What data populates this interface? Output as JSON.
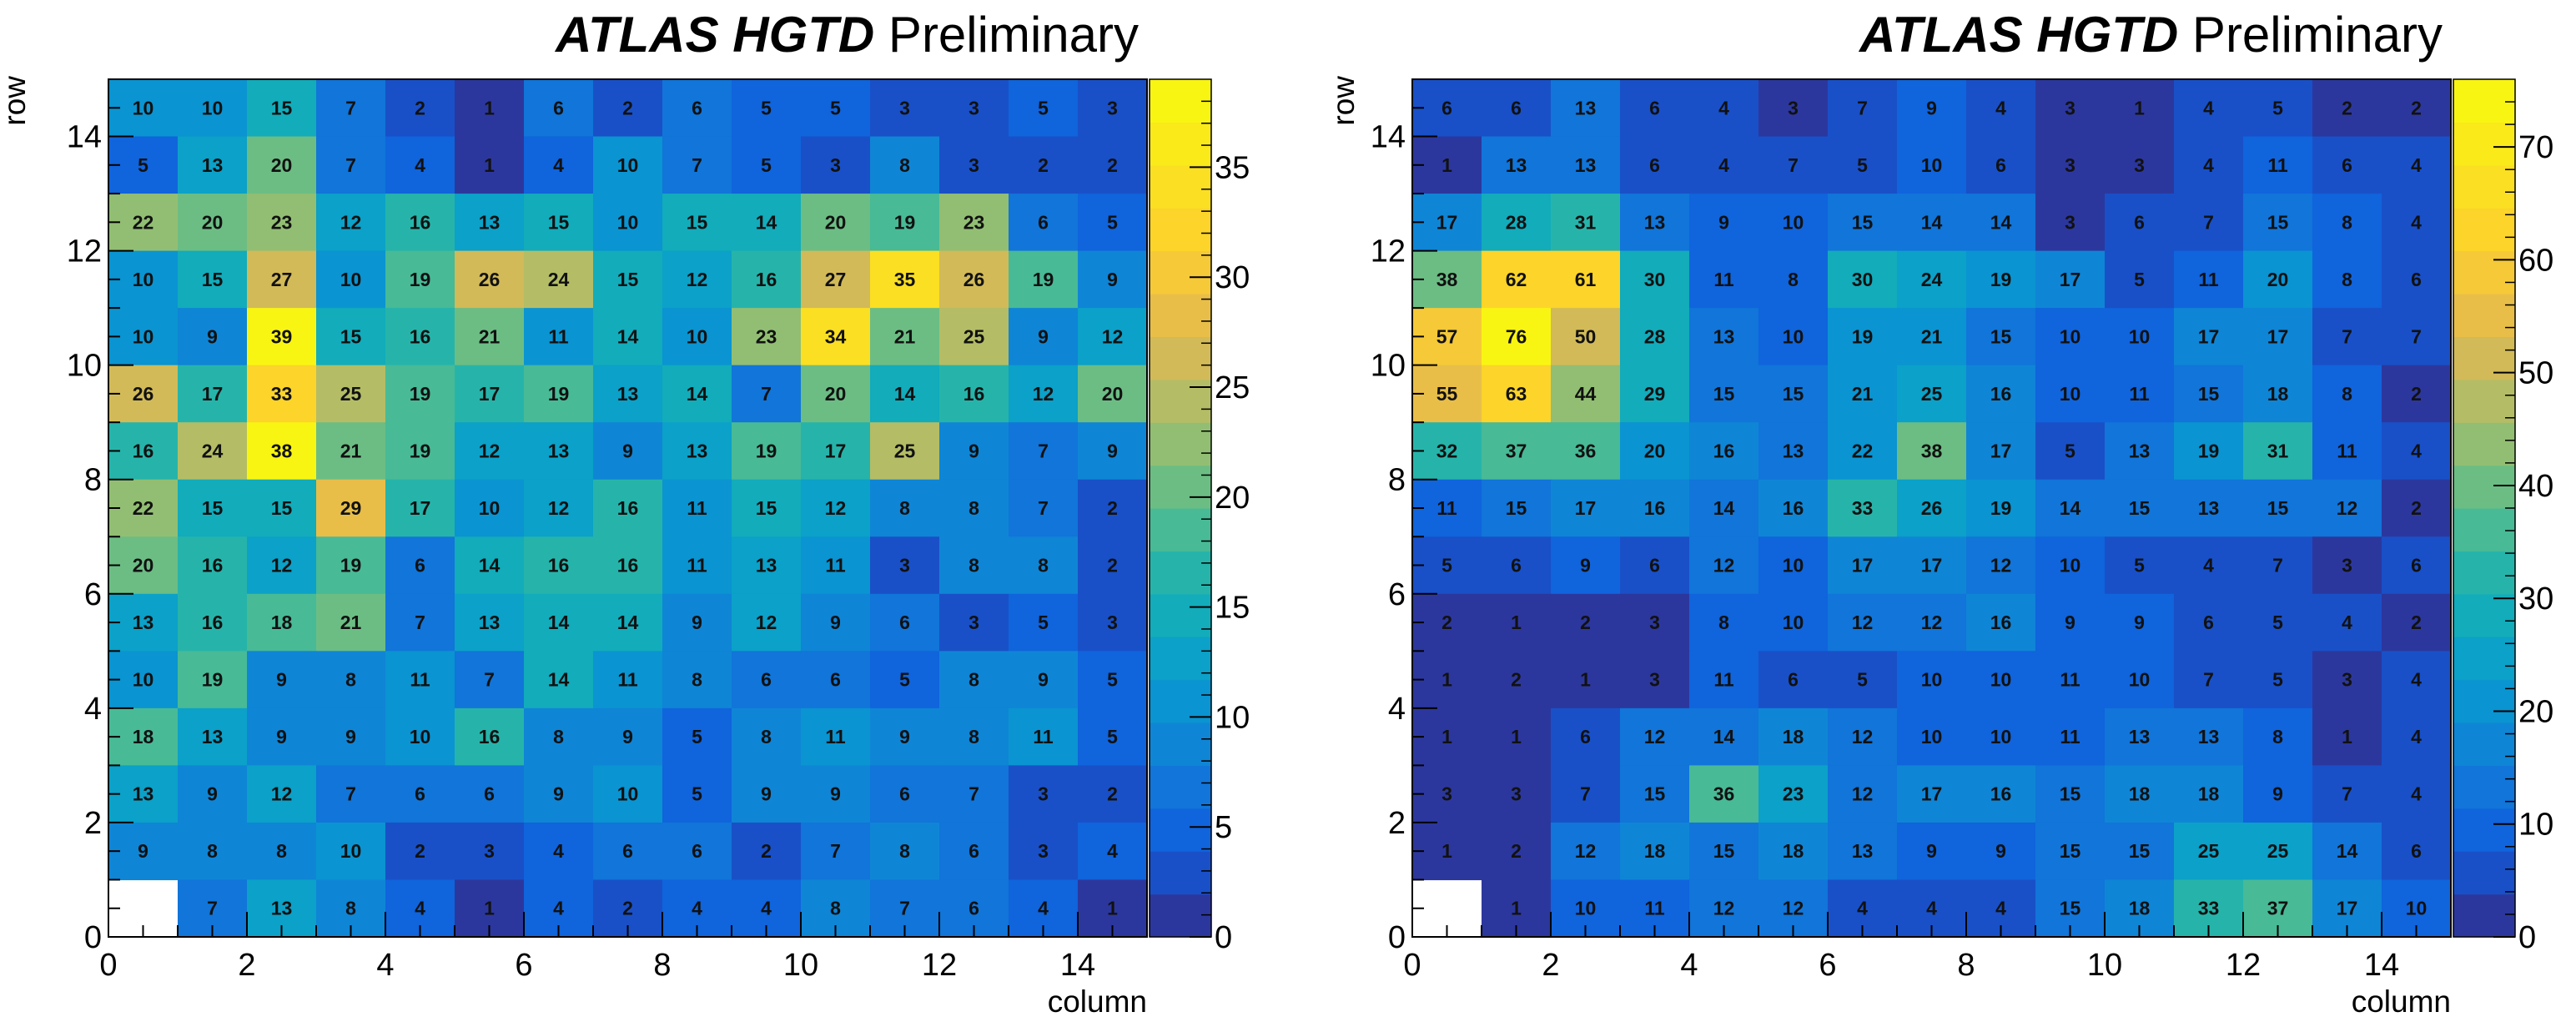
{
  "chart_data": [
    {
      "type": "heatmap",
      "title_bold": "ATLAS HGTD",
      "title_rest": " Preliminary",
      "xlabel": "column",
      "ylabel": "row",
      "xlim": [
        0,
        15
      ],
      "ylim": [
        0,
        15
      ],
      "xticks": [
        0,
        2,
        4,
        6,
        8,
        10,
        12,
        14
      ],
      "yticks": [
        0,
        2,
        4,
        6,
        8,
        10,
        12,
        14
      ],
      "zlim": [
        0,
        39
      ],
      "zticks": [
        0,
        5,
        10,
        15,
        20,
        25,
        30,
        35
      ],
      "rows_top_to_bottom": [
        [
          10,
          10,
          15,
          7,
          2,
          1,
          6,
          2,
          6,
          5,
          5,
          3,
          3,
          5,
          3
        ],
        [
          5,
          13,
          20,
          7,
          4,
          1,
          4,
          10,
          7,
          5,
          3,
          8,
          3,
          2,
          2
        ],
        [
          22,
          20,
          23,
          12,
          16,
          13,
          15,
          10,
          15,
          14,
          20,
          19,
          23,
          6,
          5
        ],
        [
          10,
          15,
          27,
          10,
          19,
          26,
          24,
          15,
          12,
          16,
          27,
          35,
          26,
          19,
          9
        ],
        [
          10,
          9,
          39,
          15,
          16,
          21,
          11,
          14,
          10,
          23,
          34,
          21,
          25,
          9,
          12
        ],
        [
          26,
          17,
          33,
          25,
          19,
          17,
          19,
          13,
          14,
          7,
          20,
          14,
          16,
          12,
          20
        ],
        [
          16,
          24,
          38,
          21,
          19,
          12,
          13,
          9,
          13,
          19,
          17,
          25,
          9,
          7,
          9
        ],
        [
          22,
          15,
          15,
          29,
          17,
          10,
          12,
          16,
          11,
          15,
          12,
          8,
          8,
          7,
          2
        ],
        [
          20,
          16,
          12,
          19,
          6,
          14,
          16,
          16,
          11,
          13,
          11,
          3,
          8,
          8,
          2
        ],
        [
          13,
          16,
          18,
          21,
          7,
          13,
          14,
          14,
          9,
          12,
          9,
          6,
          3,
          5,
          3
        ],
        [
          10,
          19,
          9,
          8,
          11,
          7,
          14,
          11,
          8,
          6,
          6,
          5,
          8,
          9,
          5
        ],
        [
          18,
          13,
          9,
          9,
          10,
          16,
          8,
          9,
          5,
          8,
          11,
          9,
          8,
          11,
          5
        ],
        [
          13,
          9,
          12,
          7,
          6,
          6,
          9,
          10,
          5,
          9,
          9,
          6,
          7,
          3,
          2
        ],
        [
          9,
          8,
          8,
          10,
          2,
          3,
          4,
          6,
          6,
          2,
          7,
          8,
          6,
          3,
          4
        ],
        [
          null,
          7,
          13,
          8,
          4,
          1,
          4,
          2,
          4,
          4,
          8,
          7,
          6,
          4,
          1
        ]
      ]
    },
    {
      "type": "heatmap",
      "title_bold": "ATLAS HGTD",
      "title_rest": " Preliminary",
      "xlabel": "column",
      "ylabel": "row",
      "xlim": [
        0,
        15
      ],
      "ylim": [
        0,
        15
      ],
      "xticks": [
        0,
        2,
        4,
        6,
        8,
        10,
        12,
        14
      ],
      "yticks": [
        0,
        2,
        4,
        6,
        8,
        10,
        12,
        14
      ],
      "zlim": [
        0,
        76
      ],
      "zticks": [
        0,
        10,
        20,
        30,
        40,
        50,
        60,
        70
      ],
      "rows_top_to_bottom": [
        [
          6,
          6,
          13,
          6,
          4,
          3,
          7,
          9,
          4,
          3,
          1,
          4,
          5,
          2,
          2
        ],
        [
          1,
          13,
          13,
          6,
          4,
          7,
          5,
          10,
          6,
          3,
          3,
          4,
          11,
          6,
          4
        ],
        [
          17,
          28,
          31,
          13,
          9,
          10,
          15,
          14,
          14,
          3,
          6,
          7,
          15,
          8,
          4
        ],
        [
          38,
          62,
          61,
          30,
          11,
          8,
          30,
          24,
          19,
          17,
          5,
          11,
          20,
          8,
          6
        ],
        [
          57,
          76,
          50,
          28,
          13,
          10,
          19,
          21,
          15,
          10,
          10,
          17,
          17,
          7,
          7
        ],
        [
          55,
          63,
          44,
          29,
          15,
          15,
          21,
          25,
          16,
          10,
          11,
          15,
          18,
          8,
          2
        ],
        [
          32,
          37,
          36,
          20,
          16,
          13,
          22,
          38,
          17,
          5,
          13,
          19,
          31,
          11,
          4
        ],
        [
          11,
          15,
          17,
          16,
          14,
          16,
          33,
          26,
          19,
          14,
          15,
          13,
          15,
          12,
          2
        ],
        [
          5,
          6,
          9,
          6,
          12,
          10,
          17,
          17,
          12,
          10,
          5,
          4,
          7,
          3,
          6
        ],
        [
          2,
          1,
          2,
          3,
          8,
          10,
          12,
          12,
          16,
          9,
          9,
          6,
          5,
          4,
          2
        ],
        [
          1,
          2,
          1,
          3,
          11,
          6,
          5,
          10,
          10,
          11,
          10,
          7,
          5,
          3,
          4
        ],
        [
          1,
          1,
          6,
          12,
          14,
          18,
          12,
          10,
          10,
          11,
          13,
          13,
          8,
          1,
          4
        ],
        [
          3,
          3,
          7,
          15,
          36,
          23,
          12,
          17,
          16,
          15,
          18,
          18,
          9,
          7,
          4
        ],
        [
          1,
          2,
          12,
          18,
          15,
          18,
          13,
          9,
          9,
          15,
          15,
          25,
          25,
          14,
          6
        ],
        [
          null,
          1,
          10,
          11,
          12,
          12,
          4,
          4,
          4,
          15,
          18,
          33,
          37,
          17,
          10
        ]
      ]
    }
  ]
}
